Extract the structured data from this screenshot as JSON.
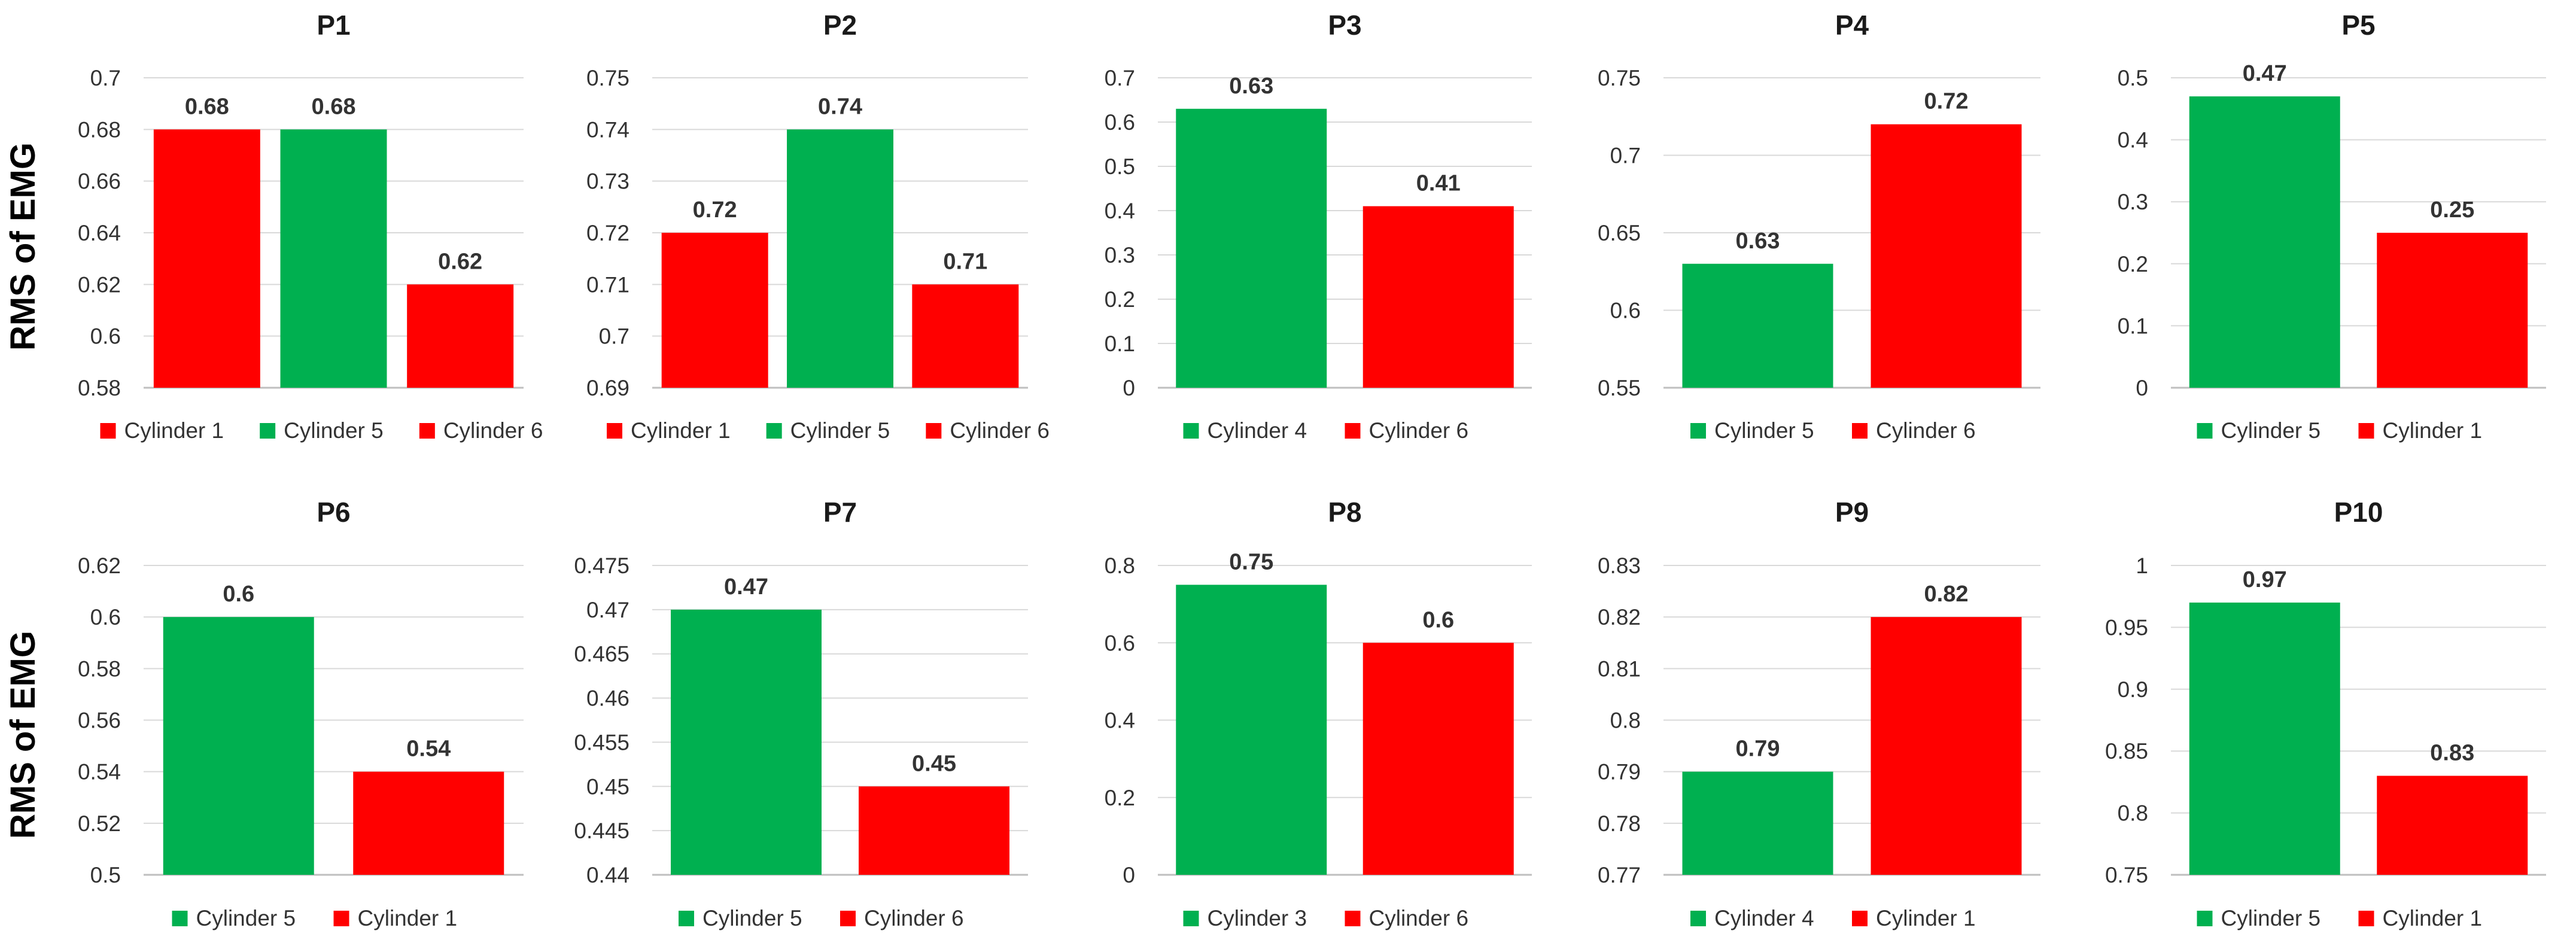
{
  "figure": {
    "ylabel": "RMS of EMG"
  },
  "colors": {
    "green": "#00b050",
    "red": "#ff0000",
    "grid": "#d9d9d9",
    "axis": "#bfbfbf"
  },
  "chart_data": [
    {
      "type": "bar",
      "title": "P1",
      "ylabel": "RMS of EMG",
      "categories": [
        "Cylinder 1",
        "Cylinder 5",
        "Cylinder 6"
      ],
      "values": [
        0.68,
        0.68,
        0.62
      ],
      "labels": [
        "0.68",
        "0.68",
        "0.62"
      ],
      "colors": [
        "red",
        "green",
        "red"
      ],
      "ylim": [
        0.58,
        0.7
      ],
      "ticks": [
        "0.58",
        "0.6",
        "0.62",
        "0.64",
        "0.66",
        "0.68",
        "0.7"
      ]
    },
    {
      "type": "bar",
      "title": "P2",
      "categories": [
        "Cylinder 1",
        "Cylinder 5",
        "Cylinder 6"
      ],
      "values": [
        0.72,
        0.74,
        0.71
      ],
      "labels": [
        "0.72",
        "0.74",
        "0.71"
      ],
      "colors": [
        "red",
        "green",
        "red"
      ],
      "ylim": [
        0.69,
        0.75
      ],
      "ticks": [
        "0.69",
        "0.7",
        "0.71",
        "0.72",
        "0.73",
        "0.74",
        "0.75"
      ]
    },
    {
      "type": "bar",
      "title": "P3",
      "categories": [
        "Cylinder 4",
        "Cylinder 6"
      ],
      "values": [
        0.63,
        0.41
      ],
      "labels": [
        "0.63",
        "0.41"
      ],
      "colors": [
        "green",
        "red"
      ],
      "ylim": [
        0,
        0.7
      ],
      "ticks": [
        "0",
        "0.1",
        "0.2",
        "0.3",
        "0.4",
        "0.5",
        "0.6",
        "0.7"
      ]
    },
    {
      "type": "bar",
      "title": "P4",
      "categories": [
        "Cylinder 5",
        "Cylinder 6"
      ],
      "values": [
        0.63,
        0.72
      ],
      "labels": [
        "0.63",
        "0.72"
      ],
      "colors": [
        "green",
        "red"
      ],
      "ylim": [
        0.55,
        0.75
      ],
      "ticks": [
        "0.55",
        "0.6",
        "0.65",
        "0.7",
        "0.75"
      ]
    },
    {
      "type": "bar",
      "title": "P5",
      "categories": [
        "Cylinder 5",
        "Cylinder 1"
      ],
      "values": [
        0.47,
        0.25
      ],
      "labels": [
        "0.47",
        "0.25"
      ],
      "colors": [
        "green",
        "red"
      ],
      "ylim": [
        0,
        0.5
      ],
      "ticks": [
        "0",
        "0.1",
        "0.2",
        "0.3",
        "0.4",
        "0.5"
      ]
    },
    {
      "type": "bar",
      "title": "P6",
      "ylabel": "RMS of EMG",
      "categories": [
        "Cylinder 5",
        "Cylinder 1"
      ],
      "values": [
        0.6,
        0.54
      ],
      "labels": [
        "0.6",
        "0.54"
      ],
      "colors": [
        "green",
        "red"
      ],
      "ylim": [
        0.5,
        0.62
      ],
      "ticks": [
        "0.5",
        "0.52",
        "0.54",
        "0.56",
        "0.58",
        "0.6",
        "0.62"
      ]
    },
    {
      "type": "bar",
      "title": "P7",
      "categories": [
        "Cylinder 5",
        "Cylinder 6"
      ],
      "values": [
        0.47,
        0.45
      ],
      "labels": [
        "0.47",
        "0.45"
      ],
      "colors": [
        "green",
        "red"
      ],
      "ylim": [
        0.44,
        0.475
      ],
      "ticks": [
        "0.44",
        "0.445",
        "0.45",
        "0.455",
        "0.46",
        "0.465",
        "0.47",
        "0.475"
      ]
    },
    {
      "type": "bar",
      "title": "P8",
      "categories": [
        "Cylinder 3",
        "Cylinder 6"
      ],
      "values": [
        0.75,
        0.6
      ],
      "labels": [
        "0.75",
        "0.6"
      ],
      "colors": [
        "green",
        "red"
      ],
      "ylim": [
        0,
        0.8
      ],
      "ticks": [
        "0",
        "0.2",
        "0.4",
        "0.6",
        "0.8"
      ]
    },
    {
      "type": "bar",
      "title": "P9",
      "categories": [
        "Cylinder 4",
        "Cylinder 1"
      ],
      "values": [
        0.79,
        0.82
      ],
      "labels": [
        "0.79",
        "0.82"
      ],
      "colors": [
        "green",
        "red"
      ],
      "ylim": [
        0.77,
        0.83
      ],
      "ticks": [
        "0.77",
        "0.78",
        "0.79",
        "0.8",
        "0.81",
        "0.82",
        "0.83"
      ]
    },
    {
      "type": "bar",
      "title": "P10",
      "categories": [
        "Cylinder 5",
        "Cylinder 1"
      ],
      "values": [
        0.97,
        0.83
      ],
      "labels": [
        "0.97",
        "0.83"
      ],
      "colors": [
        "green",
        "red"
      ],
      "ylim": [
        0.75,
        1
      ],
      "ticks": [
        "0.75",
        "0.8",
        "0.85",
        "0.9",
        "0.95",
        "1"
      ]
    }
  ]
}
